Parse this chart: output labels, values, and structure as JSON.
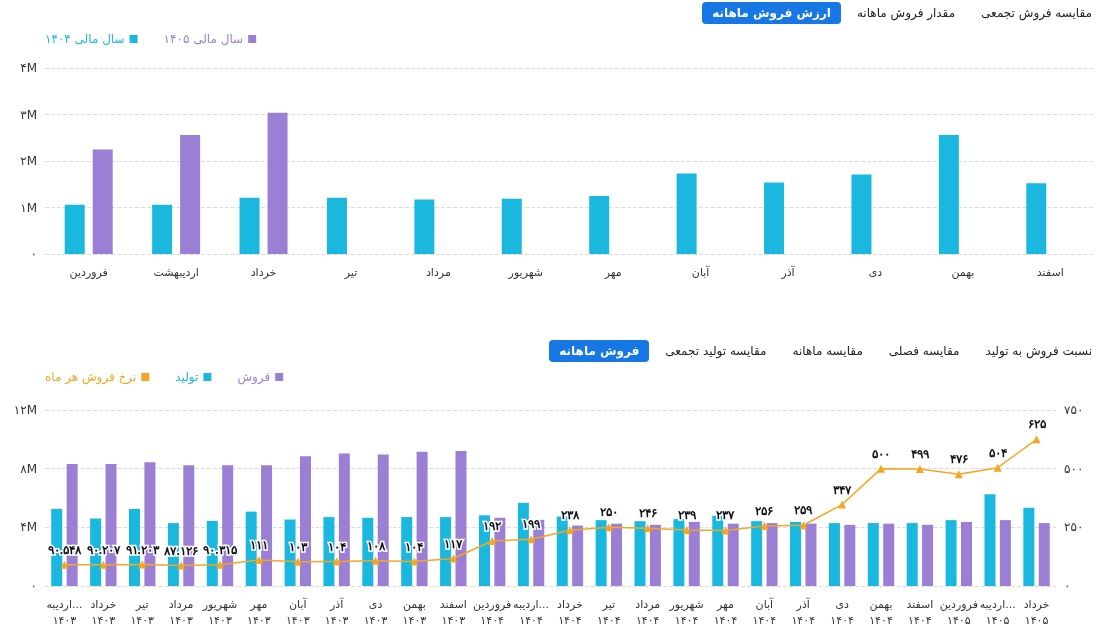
{
  "chart_data": [
    {
      "type": "bar",
      "annotations": [
        "ارزش فروش ماهانه",
        "مقدار فروش ماهانه",
        "مقایسه فروش تجمعی"
      ],
      "categories": [
        "فروردین",
        "اردیبهشت",
        "خرداد",
        "تیر",
        "مرداد",
        "شهریور",
        "مهر",
        "آبان",
        "آذر",
        "دی",
        "بهمن",
        "اسفند"
      ],
      "series": [
        {
          "name": "سال مالی ۱۴۰۴",
          "color": "#1ab8de",
          "values": [
            1060000,
            1060000,
            1210000,
            1210000,
            1170000,
            1190000,
            1250000,
            1730000,
            1540000,
            1710000,
            2560000,
            1520000
          ]
        },
        {
          "name": "سال مالی ۱۴۰۵",
          "color": "#9b7fd4",
          "values": [
            2250000,
            2560000,
            3040000,
            null,
            null,
            null,
            null,
            null,
            null,
            null,
            null,
            null
          ]
        }
      ],
      "ylim": [
        0,
        4000000
      ],
      "yticks": [
        {
          "value": 0,
          "label": "۰"
        },
        {
          "value": 1000000,
          "label": "۱M"
        },
        {
          "value": 2000000,
          "label": "۲M"
        },
        {
          "value": 3000000,
          "label": "۳M"
        },
        {
          "value": 4000000,
          "label": "۴M"
        }
      ],
      "grid": "y",
      "legend": "top left"
    },
    {
      "type": "bar",
      "annotations": [
        "فروش ماهانه",
        "مقایسه تولید تجمعی",
        "مقایسه ماهانه",
        "مقایسه فصلی",
        "نسبت فروش به تولید"
      ],
      "categories": [
        "اردیبه...\n۱۴۰۳",
        "خرداد\n۱۴۰۳",
        "تیر\n۱۴۰۳",
        "مرداد\n۱۴۰۳",
        "شهریور\n۱۴۰۳",
        "مهر\n۱۴۰۳",
        "آبان\n۱۴۰۳",
        "آذر\n۱۴۰۳",
        "دی\n۱۴۰۳",
        "بهمن\n۱۴۰۳",
        "اسفند\n۱۴۰۳",
        "فروردین\n۱۴۰۴",
        "اردیبه...\n۱۴۰۴",
        "خرداد\n۱۴۰۴",
        "تیر\n۱۴۰۴",
        "مرداد\n۱۴۰۴",
        "شهریور\n۱۴۰۴",
        "مهر\n۱۴۰۴",
        "آبان\n۱۴۰۴",
        "آذر\n۱۴۰۴",
        "دی\n۱۴۰۴",
        "بهمن\n۱۴۰۴",
        "اسفند\n۱۴۰۴",
        "فروردین\n۱۴۰۵",
        "اردیبه...\n۱۴۰۵",
        "خرداد\n۱۴۰۵"
      ],
      "series": [
        {
          "name": "نرخ فروش هر ماه",
          "type": "line",
          "axis": "y2",
          "color": "#f5a623",
          "marker": "triangle",
          "values": [
            90.548,
            90.207,
            91.203,
            87.126,
            90.315,
            111,
            103,
            104,
            108,
            104,
            117,
            192,
            199,
            238,
            250,
            246,
            239,
            237,
            256,
            259,
            347,
            500,
            499,
            476,
            504,
            625
          ],
          "value_labels": [
            "۹۰.۵۴۸",
            "۹۰.۲۰۷",
            "۹۱.۲۰۳",
            "۸۷.۱۲۶",
            "۹۰.۳۱۵",
            "۱۱۱",
            "۱۰۳",
            "۱۰۴",
            "۱۰۸",
            "۱۰۴",
            "۱۱۷",
            "۱۹۲",
            "۱۹۹",
            "۲۳۸",
            "۲۵۰",
            "۲۴۶",
            "۲۳۹",
            "۲۳۷",
            "۲۵۶",
            "۲۵۹",
            "۳۴۷",
            "۵۰۰",
            "۴۹۹",
            "۴۷۶",
            "۵۰۴",
            "۶۲۵"
          ]
        },
        {
          "name": "تولید",
          "color": "#1ab8de",
          "values": [
            5260000,
            4600000,
            5260000,
            4290000,
            4440000,
            5070000,
            4530000,
            4700000,
            4650000,
            4700000,
            4700000,
            4820000,
            5670000,
            4740000,
            4490000,
            4420000,
            4560000,
            4790000,
            4420000,
            4370000,
            4290000,
            4290000,
            4290000,
            4490000,
            6260000,
            5330000
          ]
        },
        {
          "name": "فروش",
          "color": "#9b7fd4",
          "values": [
            8320000,
            8320000,
            8440000,
            8240000,
            8240000,
            8240000,
            8850000,
            9040000,
            8970000,
            9160000,
            9210000,
            4650000,
            4510000,
            4120000,
            4250000,
            4170000,
            4370000,
            4250000,
            4290000,
            4250000,
            4170000,
            4250000,
            4170000,
            4370000,
            4490000,
            4290000
          ]
        }
      ],
      "ylim": [
        0,
        12000000
      ],
      "yticks": [
        {
          "value": 0,
          "label": "۰"
        },
        {
          "value": 4000000,
          "label": "۴M"
        },
        {
          "value": 8000000,
          "label": "۸M"
        },
        {
          "value": 12000000,
          "label": "۱۲M"
        }
      ],
      "y2lim": [
        0,
        750
      ],
      "y2ticks": [
        {
          "value": 0,
          "label": "۰"
        },
        {
          "value": 250,
          "label": "۲۵۰"
        },
        {
          "value": 500,
          "label": "۵۰۰"
        },
        {
          "value": 750,
          "label": "۷۵۰"
        }
      ],
      "grid": "y",
      "legend": "top left"
    }
  ]
}
